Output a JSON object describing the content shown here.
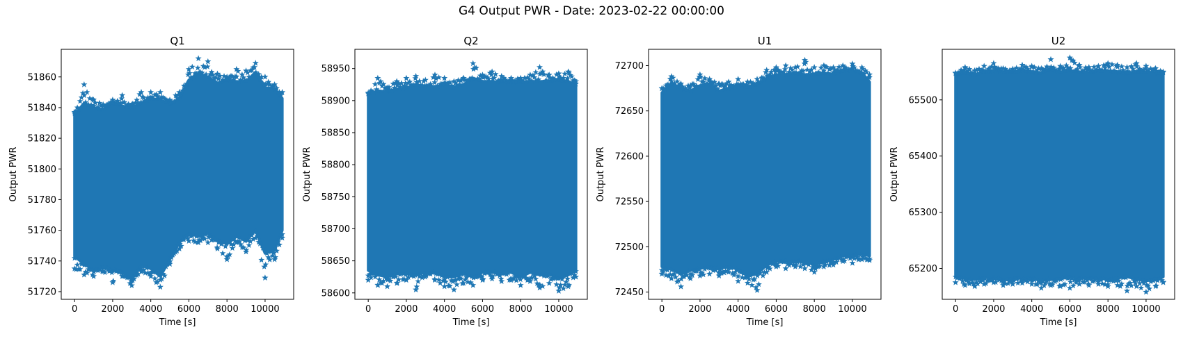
{
  "figure": {
    "suptitle": "G4 Output PWR - Date: 2023-02-22 00:00:00"
  },
  "colors": {
    "series": "#1f77b4",
    "axes": "#000000",
    "background": "#ffffff"
  },
  "chart_data": [
    {
      "type": "scatter",
      "marker": "star",
      "title": "Q1",
      "xlabel": "Time [s]",
      "ylabel": "Output PWR",
      "xlim": [
        -700,
        11500
      ],
      "ylim": [
        51715,
        51878
      ],
      "xticks": [
        0,
        2000,
        4000,
        6000,
        8000,
        10000
      ],
      "yticks": [
        51720,
        51740,
        51760,
        51780,
        51800,
        51820,
        51840,
        51860
      ],
      "grid": false,
      "series": [
        {
          "x": [
            0,
            500,
            1000,
            1500,
            2000,
            2500,
            3000,
            3500,
            4000,
            4500,
            5000,
            5500,
            6000,
            6500,
            7000,
            7500,
            8000,
            8500,
            9000,
            9500,
            10000,
            10500,
            10900
          ],
          "upper": [
            51835,
            51843,
            51840,
            51838,
            51843,
            51841,
            51840,
            51843,
            51846,
            51845,
            51842,
            51846,
            51858,
            51862,
            51860,
            51856,
            51858,
            51857,
            51857,
            51863,
            51853,
            51852,
            51846
          ],
          "lower": [
            51743,
            51738,
            51734,
            51736,
            51734,
            51733,
            51728,
            51737,
            51735,
            51730,
            51741,
            51752,
            51758,
            51756,
            51758,
            51754,
            51751,
            51756,
            51753,
            51760,
            51745,
            51747,
            51760
          ],
          "peak_max": [
            51837,
            51855,
            51845,
            51842,
            51845,
            51848,
            51842,
            51850,
            51850,
            51850,
            51845,
            51850,
            51865,
            51872,
            51870,
            51862,
            51860,
            51865,
            51864,
            51869,
            51860,
            51855,
            51850
          ],
          "peak_min": [
            51735,
            51731,
            51730,
            51733,
            51726,
            51730,
            51724,
            51733,
            51730,
            51723,
            51738,
            51748,
            51753,
            51752,
            51752,
            51748,
            51741,
            51752,
            51746,
            51755,
            51729,
            51741,
            51755
          ]
        }
      ]
    },
    {
      "type": "scatter",
      "marker": "star",
      "title": "Q2",
      "xlabel": "Time [s]",
      "ylabel": "Output PWR",
      "xlim": [
        -700,
        11500
      ],
      "ylim": [
        58590,
        58980
      ],
      "xticks": [
        0,
        2000,
        4000,
        6000,
        8000,
        10000
      ],
      "yticks": [
        58600,
        58650,
        58700,
        58750,
        58800,
        58850,
        58900,
        58950
      ],
      "grid": false,
      "series": [
        {
          "x": [
            0,
            500,
            1000,
            1500,
            2000,
            2500,
            3000,
            3500,
            4000,
            4500,
            5000,
            5500,
            6000,
            6500,
            7000,
            7500,
            8000,
            8500,
            9000,
            9500,
            10000,
            10500,
            10900
          ],
          "upper": [
            58910,
            58915,
            58914,
            58918,
            58920,
            58925,
            58922,
            58922,
            58924,
            58920,
            58925,
            58935,
            58930,
            58930,
            58928,
            58930,
            58928,
            58930,
            58930,
            58930,
            58932,
            58930,
            58925
          ],
          "lower": [
            58635,
            58628,
            58625,
            58630,
            58630,
            58628,
            58632,
            58632,
            58625,
            58625,
            58630,
            58625,
            58632,
            58633,
            58630,
            58632,
            58625,
            58632,
            58628,
            58630,
            58622,
            58628,
            58635
          ],
          "peak_max": [
            58912,
            58935,
            58920,
            58930,
            58935,
            58938,
            58932,
            58940,
            58935,
            58930,
            58935,
            58958,
            58940,
            58945,
            58938,
            58935,
            58935,
            58940,
            58952,
            58940,
            58942,
            58945,
            58930
          ],
          "peak_min": [
            58620,
            58612,
            58610,
            58615,
            58620,
            58605,
            58625,
            58620,
            58610,
            58605,
            58615,
            58612,
            58620,
            58622,
            58618,
            58620,
            58612,
            58618,
            58608,
            58615,
            58603,
            58610,
            58625
          ]
        }
      ]
    },
    {
      "type": "scatter",
      "marker": "star",
      "title": "U1",
      "xlabel": "Time [s]",
      "ylabel": "Output PWR",
      "xlim": [
        -700,
        11500
      ],
      "ylim": [
        72442,
        72718
      ],
      "xticks": [
        0,
        2000,
        4000,
        6000,
        8000,
        10000
      ],
      "yticks": [
        72450,
        72500,
        72550,
        72600,
        72650,
        72700
      ],
      "grid": false,
      "series": [
        {
          "x": [
            0,
            500,
            1000,
            1500,
            2000,
            2500,
            3000,
            3500,
            4000,
            4500,
            5000,
            5500,
            6000,
            6500,
            7000,
            7500,
            8000,
            8500,
            9000,
            9500,
            10000,
            10500,
            10900
          ],
          "upper": [
            72670,
            72680,
            72675,
            72672,
            72678,
            72680,
            72672,
            72675,
            72678,
            72676,
            72680,
            72686,
            72690,
            72690,
            72692,
            72690,
            72690,
            72692,
            72690,
            72695,
            72695,
            72692,
            72682
          ],
          "lower": [
            72478,
            72475,
            72470,
            72474,
            72476,
            72478,
            72476,
            72478,
            72475,
            72468,
            72470,
            72480,
            72484,
            72484,
            72484,
            72484,
            72480,
            72484,
            72486,
            72490,
            72490,
            72492,
            72490
          ],
          "peak_max": [
            72675,
            72688,
            72680,
            72678,
            72690,
            72685,
            72680,
            72682,
            72685,
            72682,
            72685,
            72695,
            72698,
            72700,
            72698,
            72706,
            72698,
            72700,
            72698,
            72700,
            72702,
            72698,
            72690
          ],
          "peak_min": [
            72470,
            72465,
            72456,
            72465,
            72468,
            72470,
            72468,
            72472,
            72462,
            72460,
            72452,
            72472,
            72478,
            72476,
            72478,
            72476,
            72472,
            72478,
            72480,
            72484,
            72482,
            72486,
            72485
          ]
        }
      ]
    },
    {
      "type": "scatter",
      "marker": "star",
      "title": "U2",
      "xlabel": "Time [s]",
      "ylabel": "Output PWR",
      "xlim": [
        -700,
        11500
      ],
      "ylim": [
        65145,
        65590
      ],
      "xticks": [
        0,
        2000,
        4000,
        6000,
        8000,
        10000
      ],
      "yticks": [
        65200,
        65300,
        65400,
        65500
      ],
      "grid": false,
      "series": [
        {
          "x": [
            0,
            500,
            1000,
            1500,
            2000,
            2500,
            3000,
            3500,
            4000,
            4500,
            5000,
            5500,
            6000,
            6500,
            7000,
            7500,
            8000,
            8500,
            9000,
            9500,
            10000,
            10500,
            10900
          ],
          "upper": [
            65545,
            65548,
            65545,
            65550,
            65552,
            65550,
            65548,
            65552,
            65550,
            65548,
            65555,
            65550,
            65552,
            65550,
            65548,
            65552,
            65552,
            65550,
            65548,
            65550,
            65550,
            65548,
            65545
          ],
          "lower": [
            65185,
            65182,
            65180,
            65183,
            65185,
            65180,
            65182,
            65184,
            65182,
            65180,
            65180,
            65182,
            65185,
            65183,
            65182,
            65184,
            65180,
            65183,
            65185,
            65181,
            65178,
            65180,
            65185
          ],
          "peak_max": [
            65548,
            65558,
            65552,
            65560,
            65565,
            65556,
            65555,
            65562,
            65560,
            65556,
            65572,
            65560,
            65575,
            65562,
            65558,
            65560,
            65565,
            65562,
            65558,
            65565,
            65560,
            65556,
            65550
          ],
          "peak_min": [
            65175,
            65170,
            65168,
            65172,
            65175,
            65170,
            65172,
            65174,
            65172,
            65165,
            65170,
            65168,
            65165,
            65172,
            65170,
            65172,
            65168,
            65170,
            65160,
            65168,
            65158,
            65168,
            65175
          ]
        }
      ]
    }
  ]
}
